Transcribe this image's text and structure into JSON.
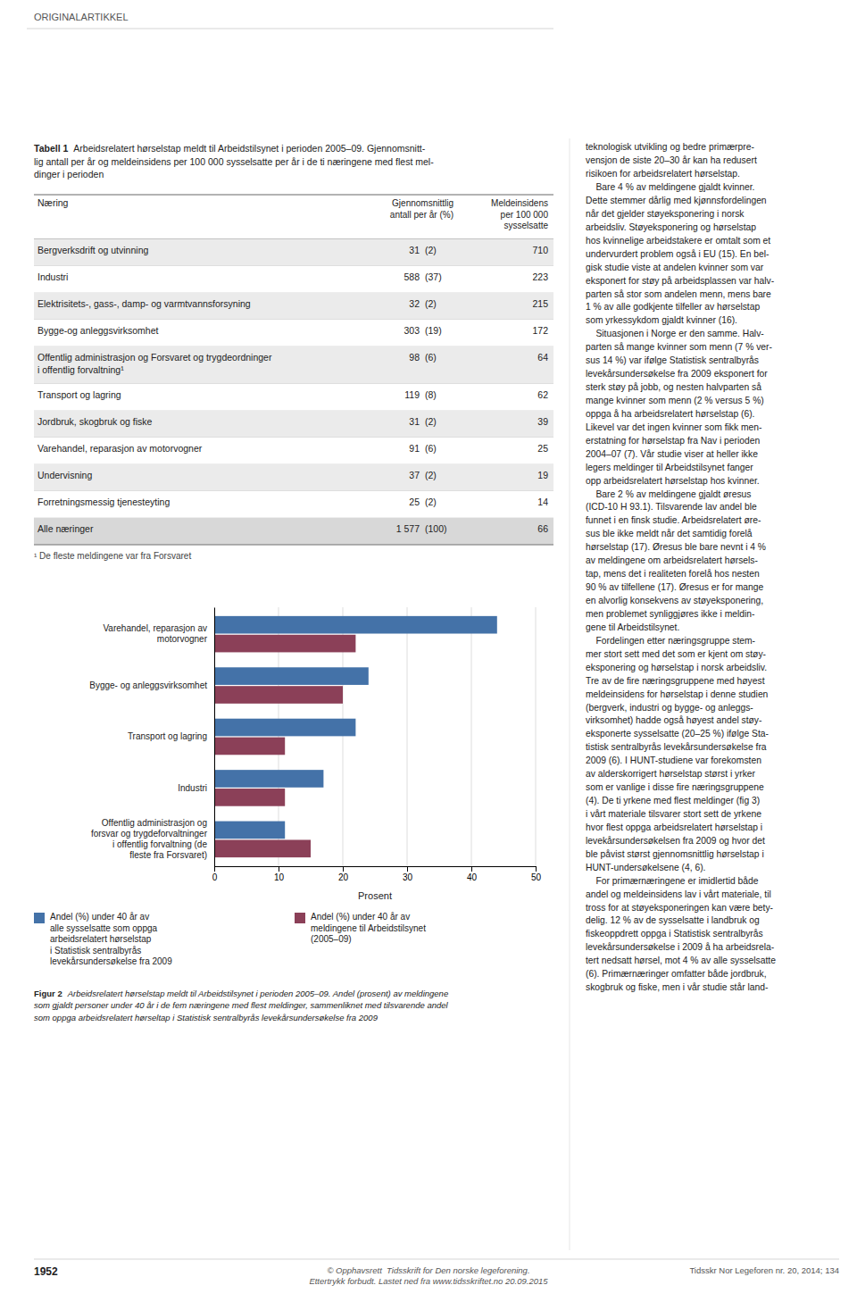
{
  "header": "ORIGINALARTIKKEL",
  "table": {
    "label": "Tabell 1",
    "title": "Arbeidsrelatert hørselstap meldt til Arbeidstilsynet i perioden 2005–09. Gjennomsnitt-\nlig antall per år og meldeinsidens per 100 000 sysselsatte per år i de ti næringene med flest mel-\ndinger i perioden",
    "columns": [
      "Næring",
      "Gjennomsnittlig\nantall per år (%)",
      "Meldeinsidens\nper 100 000\nsysselsatte"
    ],
    "rows": [
      [
        "Bergverksdrift og utvinning",
        "31",
        "(2)",
        "710"
      ],
      [
        "Industri",
        "588",
        "(37)",
        "223"
      ],
      [
        "Elektrisitets-, gass-, damp- og varmtvannsforsyning",
        "32",
        "(2)",
        "215"
      ],
      [
        "Bygge-og anleggsvirksomhet",
        "303",
        "(19)",
        "172"
      ],
      [
        "Offentlig administrasjon og Forsvaret og trygdeordninger\ni offentlig forvaltning¹",
        "98",
        "(6)",
        "64"
      ],
      [
        "Transport og lagring",
        "119",
        "(8)",
        "62"
      ],
      [
        "Jordbruk, skogbruk og fiske",
        "31",
        "(2)",
        "39"
      ],
      [
        "Varehandel, reparasjon av motorvogner",
        "91",
        "(6)",
        "25"
      ],
      [
        "Undervisning",
        "37",
        "(2)",
        "19"
      ],
      [
        "Forretningsmessig tjenesteyting",
        "25",
        "(2)",
        "14"
      ],
      [
        "Alle næringer",
        "1 577",
        "(100)",
        "66"
      ]
    ],
    "footnote": "¹ De fleste meldingene var fra Forsvaret"
  },
  "chart_data": {
    "type": "bar",
    "orientation": "horizontal",
    "title": "Figur 2",
    "subtitle": "Arbeidsrelatert hørselstap meldt til Arbeidstilsynet i perioden 2005–09. Andel (prosent) av meldingene\nsom gjaldt personer under 40 år i de fem næringene med flest meldinger, sammenliknet med tilsvarende andel\nsom oppga arbeidsrelatert hørseltap i Statistisk sentralbyrås levekårsundersøkelse fra 2009",
    "categories": [
      "Varehandel, reparasjon av\nmotorvogner",
      "Bygge- og anleggsvirksomhet",
      "Transport og lagring",
      "Industri",
      "Offentlig administrasjon og\nforsvar og trygdeforvaltninger\ni offentlig forvaltning (de\nfleste fra Forsvaret)"
    ],
    "series": [
      {
        "name": "Andel (%) under 40 år av\nalle sysselsatte som oppga\narbeidsrelatert hørselstap\ni Statistisk sentralbyrås\nlevekårsundersøkelse fra 2009",
        "color": "#4472a8",
        "values": [
          44,
          24,
          22,
          17,
          11
        ]
      },
      {
        "name": "Andel (%) under 40 år av\nmeldingene til Arbeidstilsynet\n(2005–09)",
        "color": "#8b4058",
        "values": [
          22,
          20,
          11,
          11,
          15
        ]
      }
    ],
    "xlabel": "Prosent",
    "xlim": [
      0,
      50
    ],
    "xticks": [
      0,
      10,
      20,
      30,
      40,
      50
    ],
    "grid": true,
    "legend": "bottom"
  },
  "body_text": "teknologisk utvikling og bedre primærpre-\nvensjon de siste 20–30 år kan ha redusert\nrisikoen for arbeidsrelatert hørselstap.\n    Bare 4 % av meldingene gjaldt kvinner.\nDette stemmer dårlig med kjønnsfordelingen\nnår det gjelder støyeksponering i norsk\narbeidsliv. Støyeksponering og hørselstap\nhos kvinnelige arbeidstakere er omtalt som et\nundervurdert problem også i EU (15). En bel-\ngisk studie viste at andelen kvinner som var\neksponert for støy på arbeidsplassen var halv-\nparten så stor som andelen menn, mens bare\n1 % av alle godkjente tilfeller av hørselstap\nsom yrkessykdom gjaldt kvinner (16).\n    Situasjonen i Norge er den samme. Halv-\nparten så mange kvinner som menn (7 % ver-\nsus 14 %) var ifølge Statistisk sentralbyrås\nlevekårsundersøkelse fra 2009 eksponert for\nsterk støy på jobb, og nesten halvparten så\nmange kvinner som menn (2 % versus 5 %)\noppga å ha arbeidsrelatert hørselstap (6).\nLikevel var det ingen kvinner som fikk men-\nerstatning for hørselstap fra Nav i perioden\n2004–07 (7). Vår studie viser at heller ikke\nlegers meldinger til Arbeidstilsynet fanger\nopp arbeidsrelatert hørselstap hos kvinner.\n    Bare 2 % av meldingene gjaldt øresus\n(ICD-10 H 93.1). Tilsvarende lav andel ble\nfunnet i en finsk studie. Arbeidsrelatert øre-\nsus ble ikke meldt når det samtidig forelå\nhørselstap (17). Øresus ble bare nevnt i 4 %\nav meldingene om arbeidsrelatert hørsels-\ntap, mens det i realiteten forelå hos nesten\n90 % av tilfellene (17). Øresus er for mange\nen alvorlig konsekvens av støyeksponering,\nmen problemet synliggjøres ikke i meldin-\ngene til Arbeidstilsynet.\n    Fordelingen etter næringsgruppe stem-\nmer stort sett med det som er kjent om støy-\neksponering og hørselstap i norsk arbeidsliv.\nTre av de fire næringsgruppene med høyest\nmeldeinsidens for hørselstap i denne studien\n(bergverk, industri og bygge- og anleggs-\nvirksomhet) hadde også høyest andel støy-\neksponerte sysselsatte (20–25 %) ifølge Sta-\ntistisk sentralbyrås levekårsundersøkelse fra\n2009 (6). I HUNT-studiene var forekomsten\nav alderskorrigert hørselstap størst i yrker\nsom er vanlige i disse fire næringsgruppene\n(4). De ti yrkene med flest meldinger (fig 3)\ni vårt materiale tilsvarer stort sett de yrkene\nhvor flest oppga arbeidsrelatert hørselstap i\nlevekårsundersøkelsen fra 2009 og hvor det\nble påvist størst gjennomsnittlig hørselstap i\nHUNT-undersøkelsene (4, 6).\n    For primærnæringene er imidlertid både\nandel og meldeinsidens lav i vårt materiale, til\ntross for at støyeksponeringen kan være bety-\ndelig. 12 % av de sysselsatte i landbruk og\nfiskeoppdrett oppga i Statistisk sentralbyrås\nlevekårsundersøkelse i 2009 å ha arbeidsrela-\ntert nedsatt hørsel, mot 4 % av alle sysselsatte\n(6). Primærnæringer omfatter både jordbruk,\nskogbruk og fiske, men i vår studie står land-",
  "footer": {
    "page_number": "1952",
    "copyright": "© Opphavsrett  Tidsskrift for Den norske legeforening.\nEttertrykk forbudt. Lastet ned fra www.tidsskriftet.no 20.09.2015",
    "journal": "Tidsskr Nor Legeforen nr. 20, 2014; 134"
  }
}
